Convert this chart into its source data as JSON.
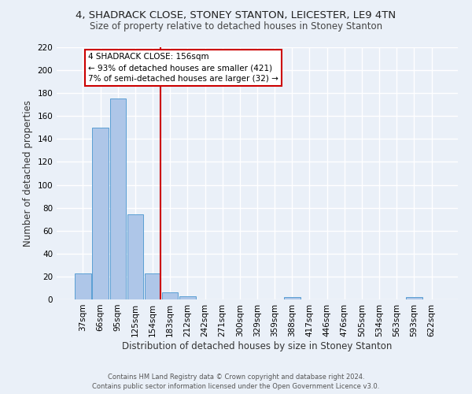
{
  "title1": "4, SHADRACK CLOSE, STONEY STANTON, LEICESTER, LE9 4TN",
  "title2": "Size of property relative to detached houses in Stoney Stanton",
  "xlabel": "Distribution of detached houses by size in Stoney Stanton",
  "ylabel": "Number of detached properties",
  "bar_labels": [
    "37sqm",
    "66sqm",
    "95sqm",
    "125sqm",
    "154sqm",
    "183sqm",
    "212sqm",
    "242sqm",
    "271sqm",
    "300sqm",
    "329sqm",
    "359sqm",
    "388sqm",
    "417sqm",
    "446sqm",
    "476sqm",
    "505sqm",
    "534sqm",
    "563sqm",
    "593sqm",
    "622sqm"
  ],
  "bar_values": [
    23,
    150,
    175,
    74,
    23,
    6,
    3,
    0,
    0,
    0,
    0,
    0,
    2,
    0,
    0,
    0,
    0,
    0,
    0,
    2,
    0
  ],
  "bar_color": "#aec6e8",
  "bar_edge_color": "#5a9fd4",
  "bg_color": "#eaf0f8",
  "grid_color": "#ffffff",
  "annotation_text": "4 SHADRACK CLOSE: 156sqm\n← 93% of detached houses are smaller (421)\n7% of semi-detached houses are larger (32) →",
  "annotation_box_color": "#ffffff",
  "annotation_box_edge_color": "#cc0000",
  "vline_color": "#cc0000",
  "footer_line1": "Contains HM Land Registry data © Crown copyright and database right 2024.",
  "footer_line2": "Contains public sector information licensed under the Open Government Licence v3.0.",
  "ylim": [
    0,
    220
  ],
  "yticks": [
    0,
    20,
    40,
    60,
    80,
    100,
    120,
    140,
    160,
    180,
    200,
    220
  ],
  "title1_fontsize": 9.5,
  "title2_fontsize": 8.5,
  "xlabel_fontsize": 8.5,
  "ylabel_fontsize": 8.5,
  "tick_fontsize": 7.5,
  "footer_fontsize": 6.0,
  "annot_fontsize": 7.5
}
